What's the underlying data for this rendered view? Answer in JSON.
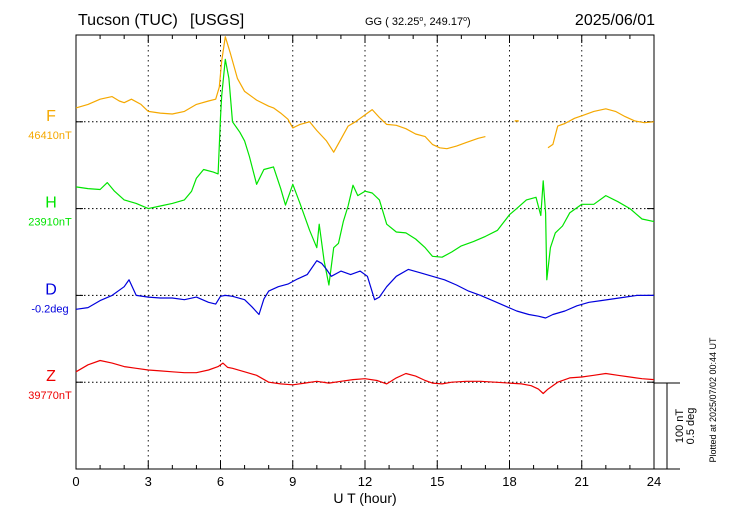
{
  "header": {
    "station": "Tucson (TUC)",
    "network": "[USGS]",
    "coords_prefix": "GG ( 32.25",
    "coords_mid": ", 249.17",
    "coords_suffix": ")",
    "degree": "o",
    "date": "2025/06/01"
  },
  "side_note": "Plotted at 2025/07/02 00:44 UT",
  "scale_bar": {
    "line1": "100 nT",
    "line2": "0.5 deg"
  },
  "colors": {
    "F": "#f5a800",
    "H": "#00e400",
    "D": "#0000dd",
    "Z": "#ee0000",
    "frame": "#000000",
    "grid": "#000000"
  },
  "chart_data": {
    "type": "line",
    "xlabel": "U T (hour)",
    "xlim": [
      0,
      24
    ],
    "xticks": [
      "0",
      "3",
      "6",
      "9",
      "12",
      "15",
      "18",
      "21",
      "24"
    ],
    "grid": "dotted baselines and hourly ticks",
    "y_units_per_100nT": 100,
    "series": [
      {
        "name": "F",
        "baseline_label": "46410nT",
        "baseline_row": 1,
        "segments": [
          [
            [
              0,
              16
            ],
            [
              0.5,
              20
            ],
            [
              1,
              26
            ],
            [
              1.5,
              29
            ],
            [
              1.8,
              24
            ],
            [
              2,
              22
            ],
            [
              2.3,
              26
            ],
            [
              2.7,
              20
            ],
            [
              3,
              12
            ],
            [
              3.5,
              10
            ],
            [
              4,
              9
            ],
            [
              4.5,
              12
            ],
            [
              5,
              20
            ],
            [
              5.5,
              24
            ],
            [
              5.8,
              26
            ],
            [
              5.95,
              40
            ],
            [
              6.05,
              70
            ],
            [
              6.2,
              98
            ],
            [
              6.4,
              80
            ],
            [
              6.7,
              50
            ],
            [
              7,
              35
            ],
            [
              7.5,
              25
            ],
            [
              8,
              18
            ],
            [
              8.2,
              16
            ],
            [
              8.5,
              10
            ],
            [
              8.8,
              3
            ],
            [
              9,
              -7
            ],
            [
              9.3,
              -3
            ],
            [
              9.7,
              0
            ],
            [
              10,
              -10
            ],
            [
              10.4,
              -22
            ],
            [
              10.7,
              -35
            ],
            [
              11,
              -20
            ],
            [
              11.3,
              -5
            ],
            [
              11.6,
              0
            ],
            [
              12,
              8
            ],
            [
              12.3,
              14
            ],
            [
              12.6,
              5
            ],
            [
              12.9,
              -3
            ],
            [
              13.3,
              -4
            ],
            [
              13.7,
              -8
            ],
            [
              14.1,
              -14
            ],
            [
              14.5,
              -17
            ],
            [
              14.8,
              -26
            ],
            [
              15.1,
              -30
            ],
            [
              15.4,
              -31
            ],
            [
              15.8,
              -28
            ],
            [
              16.2,
              -24
            ],
            [
              16.7,
              -19
            ],
            [
              17,
              -17
            ]
          ],
          [
            [
              19.6,
              -30
            ],
            [
              19.8,
              -26
            ],
            [
              20,
              -5
            ],
            [
              20.3,
              -2
            ],
            [
              20.7,
              4
            ],
            [
              21.1,
              8
            ],
            [
              21.5,
              12
            ],
            [
              22,
              15
            ],
            [
              22.4,
              12
            ],
            [
              22.8,
              6
            ],
            [
              23.2,
              1
            ],
            [
              23.6,
              -1
            ],
            [
              24,
              0
            ]
          ]
        ],
        "markers": [
          [
            18.3,
            1
          ]
        ]
      },
      {
        "name": "H",
        "baseline_label": "23910nT",
        "baseline_row": 2,
        "segments": [
          [
            [
              0,
              25
            ],
            [
              0.5,
              23
            ],
            [
              1,
              22
            ],
            [
              1.3,
              30
            ],
            [
              1.6,
              20
            ],
            [
              2,
              10
            ],
            [
              2.5,
              6
            ],
            [
              3,
              0
            ],
            [
              3.5,
              3
            ],
            [
              4,
              6
            ],
            [
              4.5,
              10
            ],
            [
              4.8,
              20
            ],
            [
              5,
              35
            ],
            [
              5.3,
              45
            ],
            [
              5.7,
              42
            ],
            [
              5.9,
              40
            ],
            [
              6.0,
              105
            ],
            [
              6.05,
              130
            ],
            [
              6.2,
              172
            ],
            [
              6.35,
              150
            ],
            [
              6.5,
              100
            ],
            [
              6.8,
              88
            ],
            [
              7,
              78
            ],
            [
              7.2,
              60
            ],
            [
              7.5,
              28
            ],
            [
              7.8,
              45
            ],
            [
              8.2,
              48
            ],
            [
              8.5,
              23
            ],
            [
              8.7,
              4
            ],
            [
              9,
              28
            ],
            [
              9.3,
              6
            ],
            [
              9.7,
              -25
            ],
            [
              10,
              -45
            ],
            [
              10.1,
              -18
            ],
            [
              10.3,
              -60
            ],
            [
              10.5,
              -88
            ],
            [
              10.7,
              -45
            ],
            [
              10.9,
              -40
            ],
            [
              11.1,
              -15
            ],
            [
              11.3,
              3
            ],
            [
              11.5,
              27
            ],
            [
              11.7,
              15
            ],
            [
              12,
              20
            ],
            [
              12.3,
              18
            ],
            [
              12.6,
              10
            ],
            [
              12.9,
              -18
            ],
            [
              13.3,
              -27
            ],
            [
              13.7,
              -28
            ],
            [
              14.1,
              -35
            ],
            [
              14.5,
              -45
            ],
            [
              14.8,
              -55
            ],
            [
              15.2,
              -56
            ],
            [
              15.6,
              -50
            ],
            [
              16,
              -43
            ],
            [
              16.5,
              -38
            ],
            [
              17,
              -32
            ],
            [
              17.5,
              -25
            ],
            [
              18,
              -7
            ],
            [
              18.3,
              0
            ],
            [
              18.7,
              10
            ],
            [
              19.1,
              13
            ],
            [
              19.3,
              -8
            ],
            [
              19.4,
              32
            ],
            [
              19.5,
              -5
            ],
            [
              19.55,
              -82
            ],
            [
              19.7,
              -45
            ],
            [
              19.9,
              -28
            ],
            [
              20.2,
              -20
            ],
            [
              20.5,
              -5
            ],
            [
              21,
              5
            ],
            [
              21.5,
              5
            ],
            [
              22,
              15
            ],
            [
              22.5,
              8
            ],
            [
              23,
              0
            ],
            [
              23.5,
              -12
            ],
            [
              24,
              -15
            ]
          ]
        ],
        "markers": []
      },
      {
        "name": "D",
        "baseline_label": "-0.2deg",
        "baseline_row": 3,
        "segments": [
          [
            [
              0,
              -16
            ],
            [
              0.5,
              -14
            ],
            [
              1,
              -6
            ],
            [
              1.5,
              0
            ],
            [
              2,
              10
            ],
            [
              2.2,
              18
            ],
            [
              2.5,
              0
            ],
            [
              3,
              -2
            ],
            [
              3.5,
              -3
            ],
            [
              4,
              -3
            ],
            [
              4.5,
              -5
            ],
            [
              5,
              -2
            ],
            [
              5.5,
              -8
            ],
            [
              5.8,
              -10
            ],
            [
              6,
              -1
            ],
            [
              6.2,
              0
            ],
            [
              6.5,
              -1
            ],
            [
              7,
              -5
            ],
            [
              7.3,
              -13
            ],
            [
              7.6,
              -22
            ],
            [
              7.8,
              -4
            ],
            [
              8,
              5
            ],
            [
              8.4,
              10
            ],
            [
              8.8,
              13
            ],
            [
              9.2,
              19
            ],
            [
              9.6,
              24
            ],
            [
              10,
              40
            ],
            [
              10.2,
              37
            ],
            [
              10.4,
              30
            ],
            [
              10.6,
              22
            ],
            [
              11,
              28
            ],
            [
              11.4,
              24
            ],
            [
              11.8,
              28
            ],
            [
              12.1,
              22
            ],
            [
              12.4,
              -5
            ],
            [
              12.6,
              -2
            ],
            [
              12.9,
              10
            ],
            [
              13.3,
              22
            ],
            [
              13.8,
              30
            ],
            [
              14.3,
              26
            ],
            [
              14.8,
              22
            ],
            [
              15.3,
              18
            ],
            [
              15.8,
              12
            ],
            [
              16.3,
              5
            ],
            [
              16.8,
              0
            ],
            [
              17.3,
              -6
            ],
            [
              17.8,
              -12
            ],
            [
              18.3,
              -18
            ],
            [
              18.8,
              -22
            ],
            [
              19.2,
              -24
            ],
            [
              19.5,
              -26
            ],
            [
              19.8,
              -22
            ],
            [
              20.3,
              -18
            ],
            [
              20.8,
              -12
            ],
            [
              21.3,
              -8
            ],
            [
              21.8,
              -6
            ],
            [
              22.3,
              -4
            ],
            [
              22.8,
              -2
            ],
            [
              23.3,
              0
            ],
            [
              24,
              0
            ]
          ]
        ],
        "markers": []
      },
      {
        "name": "Z",
        "baseline_label": "39770nT",
        "baseline_row": 4,
        "segments": [
          [
            [
              0,
              12
            ],
            [
              0.5,
              20
            ],
            [
              1,
              25
            ],
            [
              1.5,
              22
            ],
            [
              2,
              18
            ],
            [
              2.5,
              16
            ],
            [
              3,
              14
            ],
            [
              3.5,
              13
            ],
            [
              4,
              12
            ],
            [
              4.5,
              11
            ],
            [
              5,
              11
            ],
            [
              5.5,
              14
            ],
            [
              5.9,
              18
            ],
            [
              6.1,
              22
            ],
            [
              6.3,
              17
            ],
            [
              6.5,
              16
            ],
            [
              7,
              12
            ],
            [
              7.5,
              8
            ],
            [
              8,
              0
            ],
            [
              8.5,
              -2
            ],
            [
              9,
              -3
            ],
            [
              9.5,
              -1
            ],
            [
              10,
              1
            ],
            [
              10.5,
              -1
            ],
            [
              11,
              1
            ],
            [
              11.5,
              3
            ],
            [
              12,
              4
            ],
            [
              12.5,
              2
            ],
            [
              12.9,
              -2
            ],
            [
              13.3,
              5
            ],
            [
              13.7,
              10
            ],
            [
              14.1,
              7
            ],
            [
              14.5,
              2
            ],
            [
              14.8,
              -1
            ],
            [
              15.2,
              -2
            ],
            [
              15.6,
              0
            ],
            [
              16.2,
              1
            ],
            [
              16.8,
              1
            ],
            [
              17.4,
              0
            ],
            [
              18,
              -1
            ],
            [
              18.5,
              -2
            ],
            [
              18.9,
              -4
            ],
            [
              19.2,
              -8
            ],
            [
              19.4,
              -13
            ],
            [
              19.6,
              -8
            ],
            [
              20,
              0
            ],
            [
              20.5,
              5
            ],
            [
              21,
              6
            ],
            [
              21.5,
              8
            ],
            [
              22,
              10
            ],
            [
              22.5,
              8
            ],
            [
              23,
              6
            ],
            [
              23.5,
              4
            ],
            [
              24,
              3
            ]
          ]
        ],
        "markers": []
      }
    ]
  }
}
